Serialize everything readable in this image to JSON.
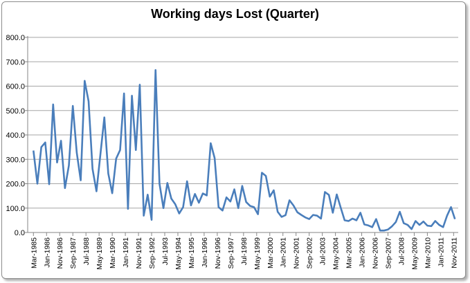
{
  "chart_data": {
    "type": "line",
    "title": "Working days Lost (Quarter)",
    "xlabel": "",
    "ylabel": "",
    "ylim": [
      0,
      800
    ],
    "yticks": [
      "0.0",
      "100.0",
      "200.0",
      "300.0",
      "400.0",
      "500.0",
      "600.0",
      "700.0",
      "800.0"
    ],
    "xtick_labels": [
      "Mar-1985",
      "Jan-1986",
      "Nov-1986",
      "Sep-1987",
      "Jul-1988",
      "May-1989",
      "Mar-1990",
      "Jan-1991",
      "Nov-1991",
      "Sep-1992",
      "Jul-1993",
      "May-1994",
      "Mar-1995",
      "Jan-1996",
      "Nov-1996",
      "Sep-1997",
      "Jul-1998",
      "May-1999",
      "Mar-2000",
      "Jan-2001",
      "Nov-2001",
      "Sep-2002",
      "Jul-2003",
      "May-2004",
      "Mar-2005",
      "Jan-2006",
      "Nov-2006",
      "Sep-2007",
      "Jul-2008",
      "May-2009",
      "Mar-2010",
      "Jan-2011",
      "Nov-2011"
    ],
    "grid": true,
    "legend": "none",
    "x_start": "Mar-1985",
    "x_frequency": "quarterly",
    "series": [
      {
        "color": "#4a7ebb",
        "values": [
          336,
          200,
          350,
          369,
          198,
          525,
          287,
          376,
          182,
          275,
          519,
          327,
          214,
          622,
          538,
          261,
          169,
          320,
          472,
          242,
          161,
          303,
          338,
          570,
          97,
          561,
          338,
          606,
          69,
          155,
          52,
          666,
          200,
          100,
          203,
          139,
          116,
          78,
          104,
          210,
          111,
          158,
          122,
          160,
          152,
          366,
          305,
          104,
          90,
          144,
          127,
          177,
          100,
          191,
          125,
          109,
          104,
          75,
          245,
          232,
          147,
          173,
          85,
          64,
          71,
          132,
          111,
          83,
          72,
          62,
          55,
          72,
          69,
          57,
          166,
          154,
          81,
          156,
          102,
          50,
          47,
          57,
          50,
          81,
          33,
          29,
          22,
          55,
          8,
          8,
          12,
          25,
          43,
          85,
          38,
          31,
          14,
          47,
          31,
          45,
          28,
          26,
          47,
          31,
          22,
          69,
          104,
          55
        ]
      }
    ]
  }
}
